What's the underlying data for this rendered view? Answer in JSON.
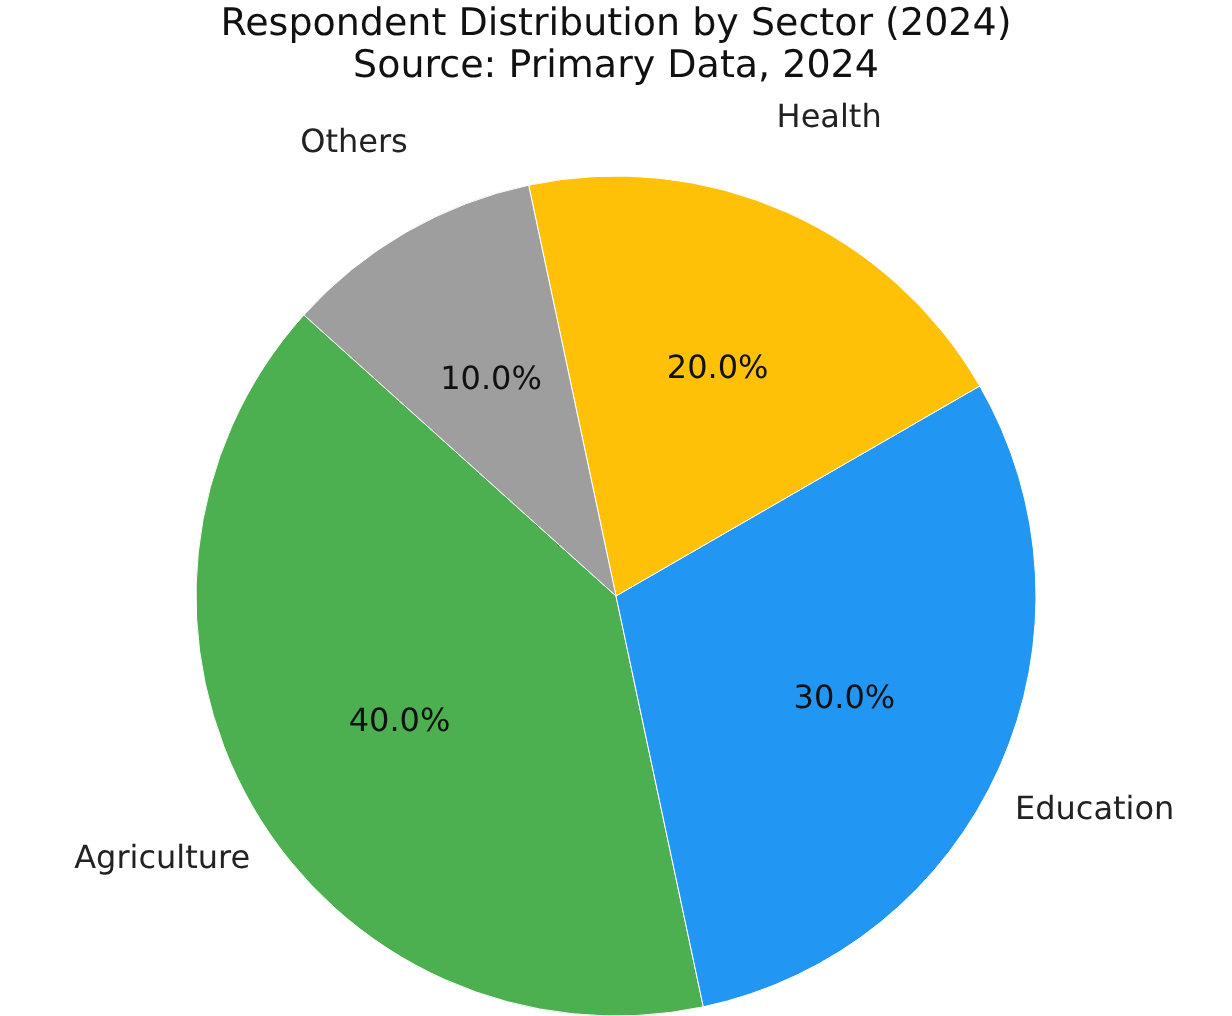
{
  "chart_data": {
    "type": "pie",
    "title": "Respondent Distribution by Sector (2024)",
    "subtitle": "Source: Primary Data, 2024",
    "categories": [
      "Agriculture",
      "Education",
      "Health",
      "Others"
    ],
    "values": [
      40,
      30,
      20,
      10
    ],
    "colors": [
      "#4caf50",
      "#2196f3",
      "#ffc107",
      "#9e9e9e"
    ],
    "value_labels": [
      "40.0%",
      "30.0%",
      "20.0%",
      "10.0%"
    ]
  }
}
